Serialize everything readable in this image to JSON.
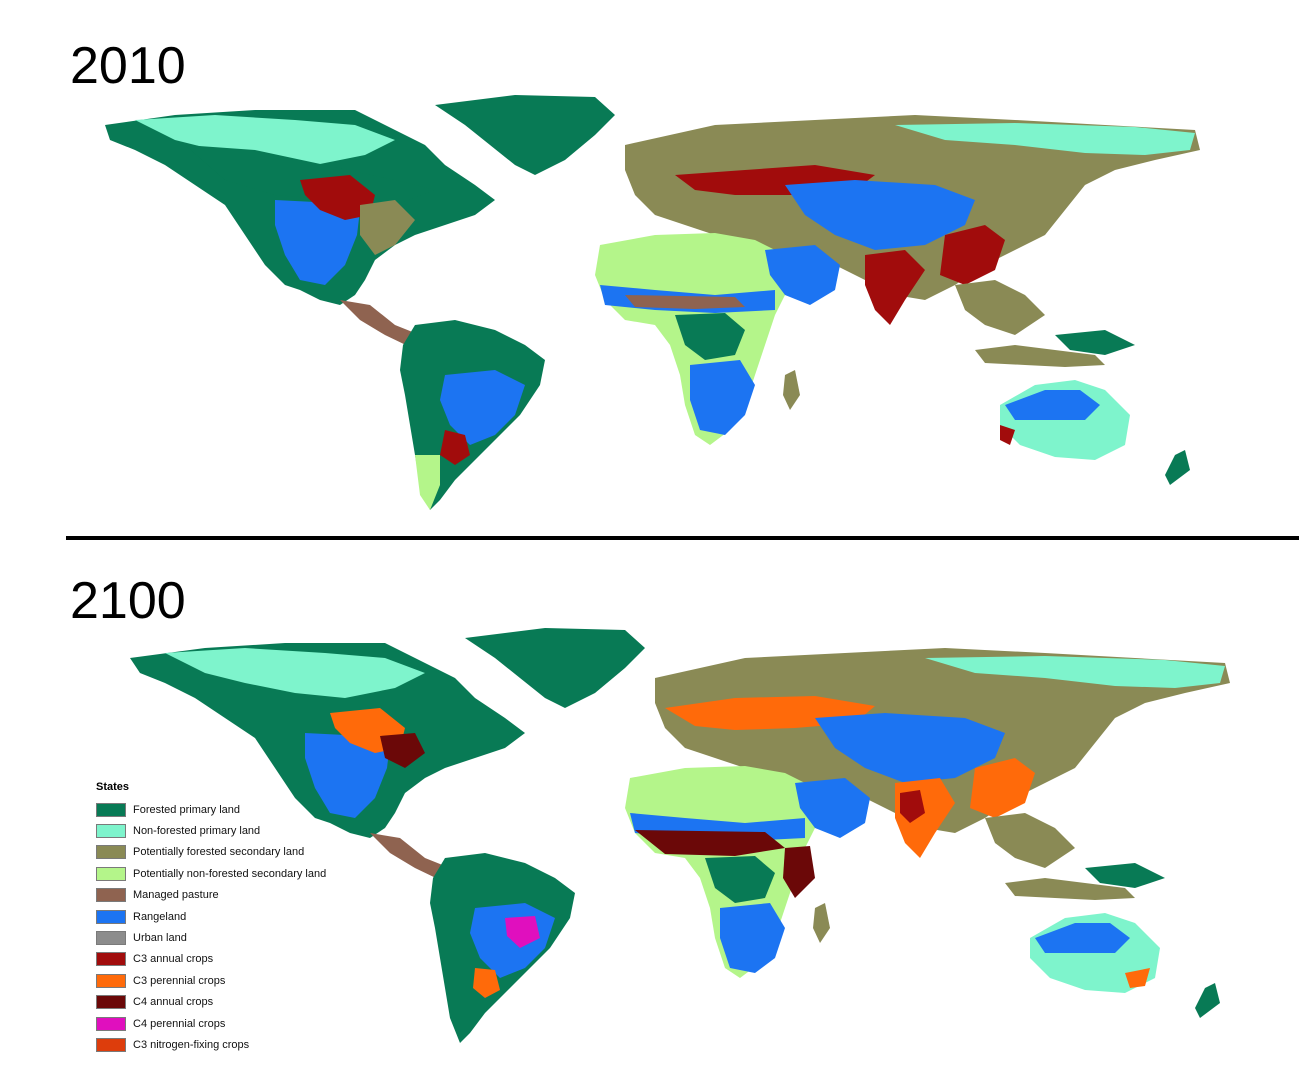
{
  "panels": [
    {
      "year": "2010"
    },
    {
      "year": "2100"
    }
  ],
  "legend": {
    "title": "States",
    "items": [
      {
        "label": "Forested primary land",
        "color": "#087a55"
      },
      {
        "label": "Non-forested primary land",
        "color": "#7ef4cc"
      },
      {
        "label": "Potentially forested secondary land",
        "color": "#8a8a55"
      },
      {
        "label": "Potentially non-forested secondary land",
        "color": "#b4f58a"
      },
      {
        "label": "Managed pasture",
        "color": "#8f6350"
      },
      {
        "label": "Rangeland",
        "color": "#1c74f2"
      },
      {
        "label": "Urban land",
        "color": "#8c8c8c"
      },
      {
        "label": "C3 annual crops",
        "color": "#a10c0c"
      },
      {
        "label": "C3 perennial crops",
        "color": "#ff6a0a"
      },
      {
        "label": "C4 annual crops",
        "color": "#6b0808"
      },
      {
        "label": "C4 perennial crops",
        "color": "#e00fbe"
      },
      {
        "label": "C3 nitrogen-fixing crops",
        "color": "#dd3d0c"
      }
    ]
  }
}
